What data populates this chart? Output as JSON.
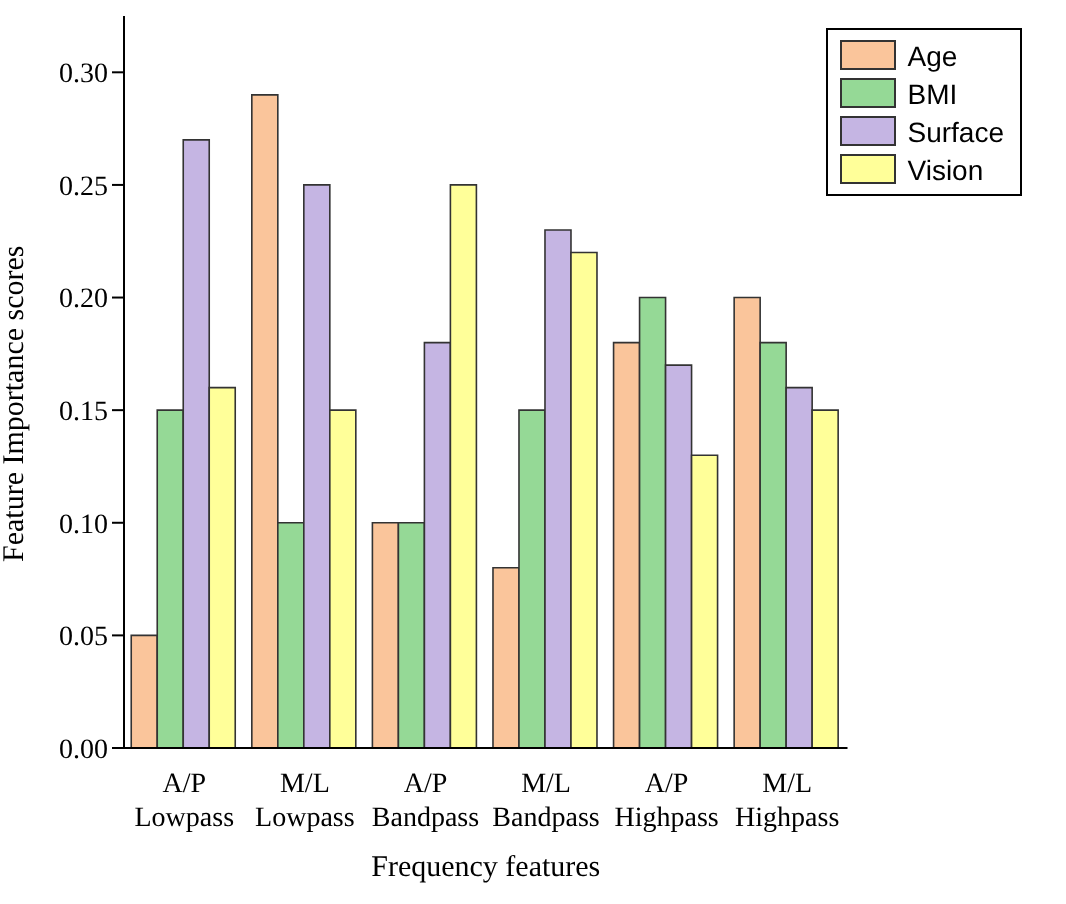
{
  "chart_data": {
    "type": "bar",
    "xlabel": "Frequency features",
    "ylabel": "Feature Importance scores",
    "categories": [
      "A/P\nLowpass",
      "M/L\nLowpass",
      "A/P\nBandpass",
      "M/L\nBandpass",
      "A/P\nHighpass",
      "M/L\nHighpass"
    ],
    "series": [
      {
        "name": "Age",
        "color": "#fac59b",
        "values": [
          0.05,
          0.29,
          0.1,
          0.08,
          0.18,
          0.2
        ]
      },
      {
        "name": "BMI",
        "color": "#95d996",
        "values": [
          0.15,
          0.1,
          0.1,
          0.15,
          0.2,
          0.18
        ]
      },
      {
        "name": "Surface",
        "color": "#c5b5e3",
        "values": [
          0.27,
          0.25,
          0.18,
          0.23,
          0.17,
          0.16
        ]
      },
      {
        "name": "Vision",
        "color": "#ffff99",
        "values": [
          0.16,
          0.15,
          0.25,
          0.22,
          0.13,
          0.15
        ]
      }
    ],
    "ylim": [
      0,
      0.325
    ],
    "yticks": [
      {
        "value": 0,
        "label": "0.00"
      },
      {
        "value": 0.05,
        "label": "0.05"
      },
      {
        "value": 0.1,
        "label": "0.10"
      },
      {
        "value": 0.15,
        "label": "0.15"
      },
      {
        "value": 0.2,
        "label": "0.20"
      },
      {
        "value": 0.25,
        "label": "0.25"
      },
      {
        "value": 0.3,
        "label": "0.30"
      }
    ],
    "grid": false,
    "legend": "top right"
  }
}
